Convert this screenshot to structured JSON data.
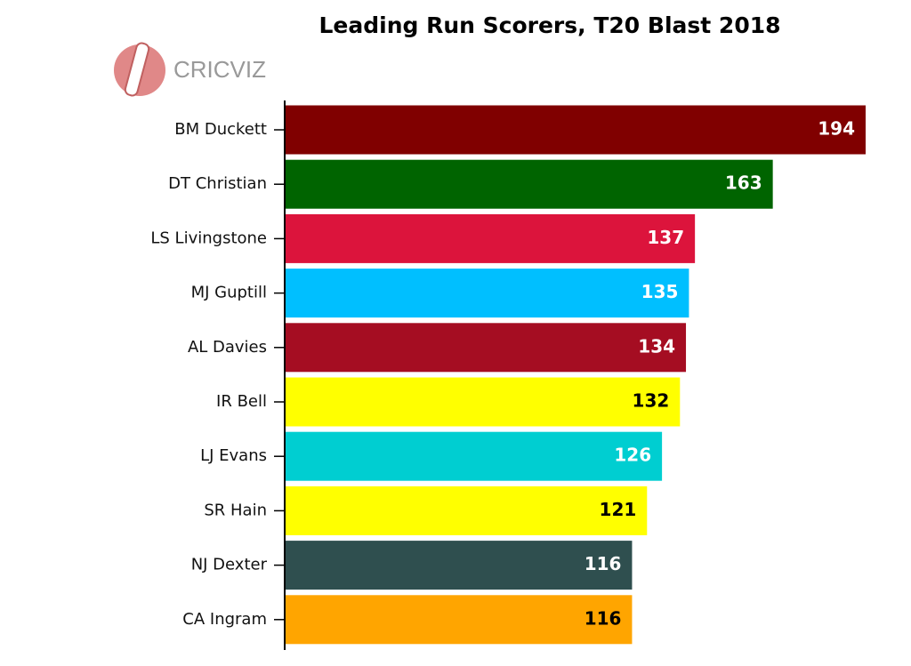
{
  "logo": "CRICVIZ",
  "chart_data": {
    "type": "bar",
    "orientation": "horizontal",
    "title": "Leading Run Scorers, T20 Blast 2018",
    "categories": [
      "BM Duckett",
      "DT Christian",
      "LS Livingstone",
      "MJ Guptill",
      "AL Davies",
      "IR Bell",
      "LJ Evans",
      "SR Hain",
      "NJ Dexter",
      "CA Ingram"
    ],
    "values": [
      194,
      163,
      137,
      135,
      134,
      132,
      126,
      121,
      116,
      116
    ],
    "colors": [
      "#800000",
      "#006400",
      "#dc143c",
      "#00bfff",
      "#a50d22",
      "#ffff00",
      "#00ced1",
      "#ffff00",
      "#2f4f4f",
      "#ffa500"
    ]
  }
}
